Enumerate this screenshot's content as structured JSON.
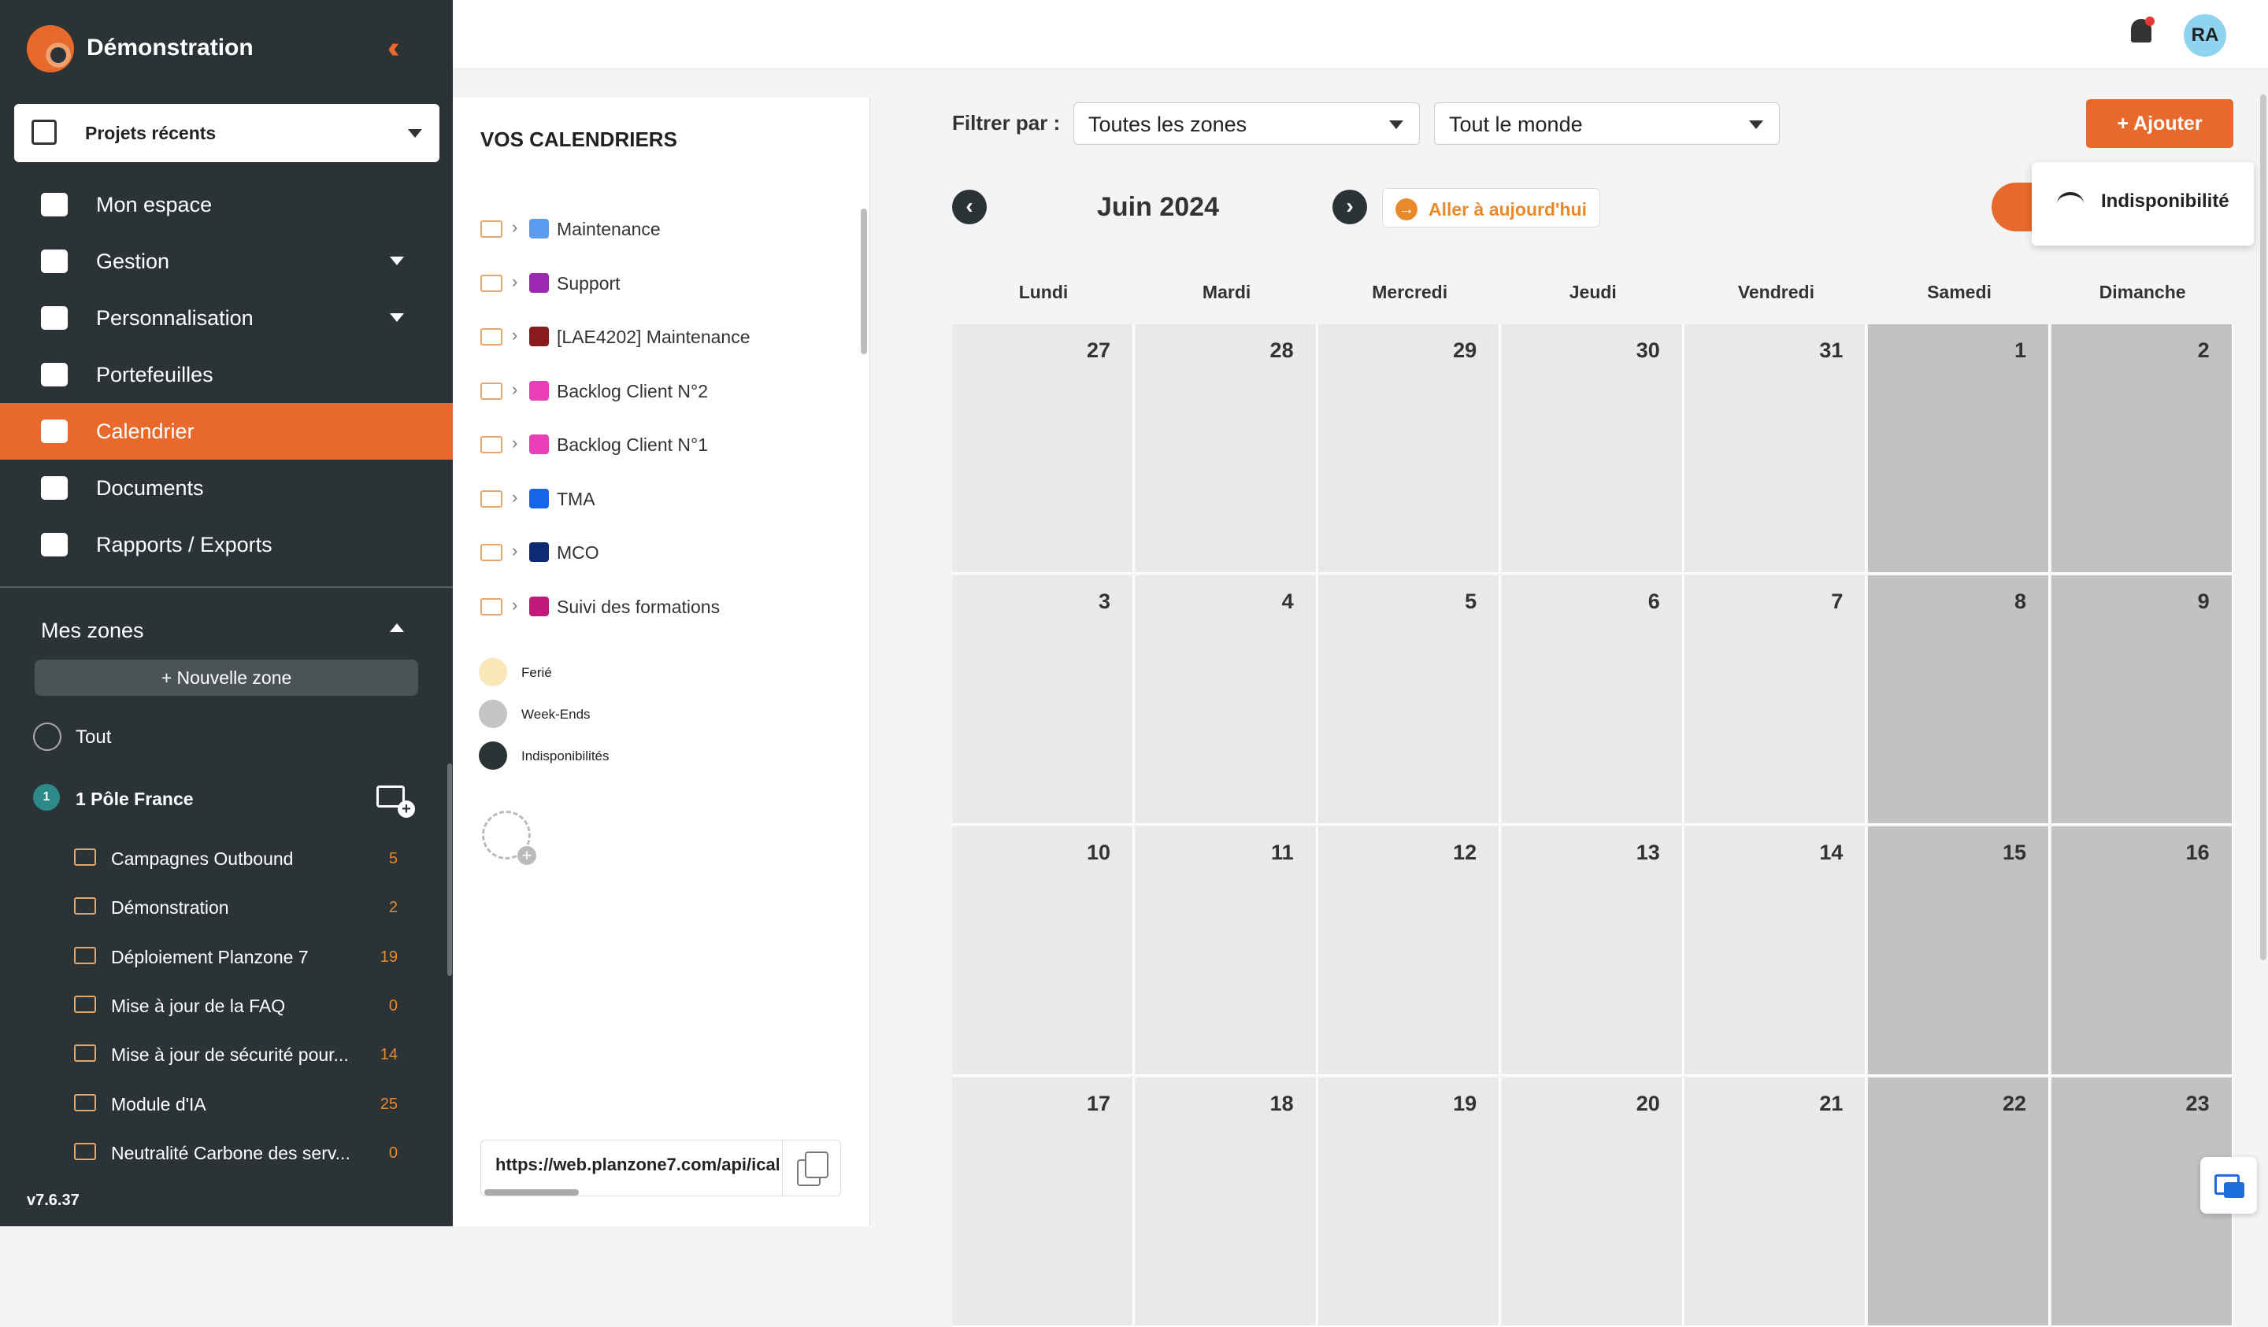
{
  "app": {
    "title": "Démonstration",
    "version": "v7.6.37",
    "accent": "#e8692c"
  },
  "recent_projects": {
    "label": "Projets récents"
  },
  "menu": [
    {
      "label": "Mon espace",
      "icon": "users-icon",
      "has_caret": false
    },
    {
      "label": "Gestion",
      "icon": "group-icon",
      "has_caret": true
    },
    {
      "label": "Personnalisation",
      "icon": "tools-icon",
      "has_caret": true
    },
    {
      "label": "Portefeuilles",
      "icon": "briefcase-icon",
      "has_caret": false
    },
    {
      "label": "Calendrier",
      "icon": "calendar-icon",
      "has_caret": false,
      "active": true
    },
    {
      "label": "Documents",
      "icon": "document-icon",
      "has_caret": false
    },
    {
      "label": "Rapports / Exports",
      "icon": "export-icon",
      "has_caret": false
    }
  ],
  "zones": {
    "title": "Mes zones",
    "new_zone": "+ Nouvelle zone",
    "all": "Tout",
    "pole": {
      "number": "1",
      "name": "1 Pôle France"
    },
    "projects": [
      {
        "name": "Campagnes Outbound",
        "count": "5"
      },
      {
        "name": "Démonstration",
        "count": "2"
      },
      {
        "name": "Déploiement Planzone 7",
        "count": "19"
      },
      {
        "name": "Mise à jour de la FAQ",
        "count": "0"
      },
      {
        "name": "Mise à jour de sécurité pour...",
        "count": "14"
      },
      {
        "name": "Module d'IA",
        "count": "25"
      },
      {
        "name": "Neutralité Carbone des serv...",
        "count": "0"
      }
    ]
  },
  "user": {
    "initials": "RA"
  },
  "calendars": {
    "title": "VOS CALENDRIERS",
    "items": [
      {
        "name": "Maintenance",
        "color": "#5b9bf0"
      },
      {
        "name": "Support",
        "color": "#9c27b0"
      },
      {
        "name": "[LAE4202] Maintenance",
        "color": "#8b1a1a"
      },
      {
        "name": "Backlog Client N°2",
        "color": "#e83fb6"
      },
      {
        "name": "Backlog Client N°1",
        "color": "#e83fb6"
      },
      {
        "name": "TMA",
        "color": "#1565e8"
      },
      {
        "name": "MCO",
        "color": "#0d2a73"
      },
      {
        "name": "Suivi des formations",
        "color": "#c2187a"
      }
    ],
    "legend": [
      {
        "label": "Ferié",
        "color": "#fbe6b8"
      },
      {
        "label": "Week-Ends",
        "color": "#c4c4c4"
      },
      {
        "label": "Indisponibilités",
        "color": "#2c3336"
      }
    ],
    "ical_url": "https://web.planzone7.com/api/ical"
  },
  "filters": {
    "label": "Filtrer par :",
    "zones": "Toutes les zones",
    "people": "Tout le monde"
  },
  "add_button": "+ Ajouter",
  "add_menu": {
    "item": "Indisponibilité"
  },
  "calendar": {
    "month": "Juin 2024",
    "today_label": "Aller à aujourd'hui",
    "weekdays": [
      "Lundi",
      "Mardi",
      "Mercredi",
      "Jeudi",
      "Vendredi",
      "Samedi",
      "Dimanche"
    ],
    "weeks": [
      [
        "27",
        "28",
        "29",
        "30",
        "31",
        "1",
        "2"
      ],
      [
        "3",
        "4",
        "5",
        "6",
        "7",
        "8",
        "9"
      ],
      [
        "10",
        "11",
        "12",
        "13",
        "14",
        "15",
        "16"
      ],
      [
        "17",
        "18",
        "19",
        "20",
        "21",
        "22",
        "23"
      ]
    ]
  }
}
